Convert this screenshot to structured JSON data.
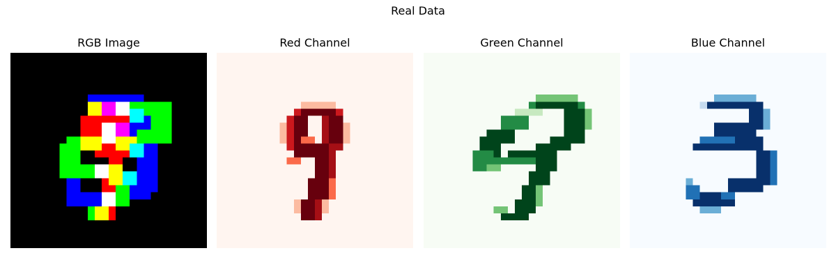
{
  "figure": {
    "title": "Real Data"
  },
  "panels": [
    {
      "title": "RGB Image",
      "background": "#000000"
    },
    {
      "title": "Red Channel",
      "background": "#fff5f0",
      "colormap": [
        "#fff5f0",
        "#fcbba1",
        "#fb6a4a",
        "#cb181d",
        "#67000d"
      ]
    },
    {
      "title": "Green Channel",
      "background": "#f7fcf5",
      "colormap": [
        "#f7fcf5",
        "#c7e9c0",
        "#74c476",
        "#238b45",
        "#00441b"
      ]
    },
    {
      "title": "Blue Channel",
      "background": "#f7fbff",
      "colormap": [
        "#f7fbff",
        "#c6dbef",
        "#6baed6",
        "#2171b5",
        "#08306b"
      ]
    }
  ]
}
